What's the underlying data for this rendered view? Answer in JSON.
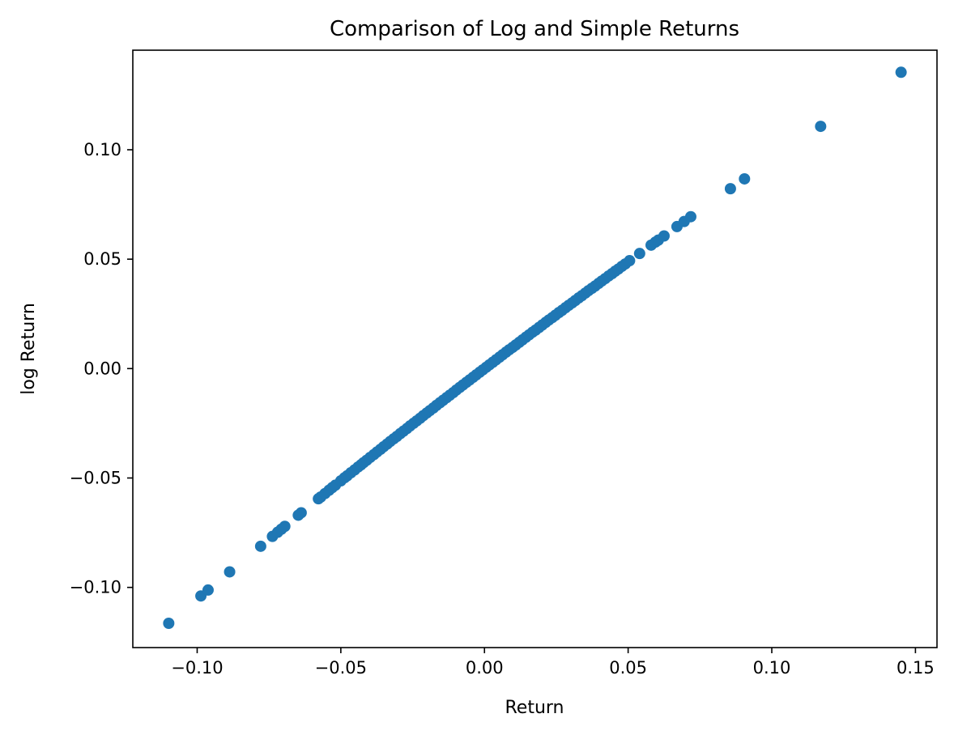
{
  "chart_data": {
    "type": "scatter",
    "title": "Comparison of Log and Simple Returns",
    "xlabel": "Return",
    "ylabel": "log Return",
    "xlim": [
      -0.1224,
      0.1575
    ],
    "ylim": [
      -0.1275,
      0.1455
    ],
    "xticks": [
      {
        "value": -0.1,
        "label": "−0.10"
      },
      {
        "value": -0.05,
        "label": "−0.05"
      },
      {
        "value": 0.0,
        "label": "0.00"
      },
      {
        "value": 0.05,
        "label": "0.05"
      },
      {
        "value": 0.1,
        "label": "0.10"
      },
      {
        "value": 0.15,
        "label": "0.15"
      }
    ],
    "yticks": [
      {
        "value": -0.1,
        "label": "−0.10"
      },
      {
        "value": -0.05,
        "label": "−0.05"
      },
      {
        "value": 0.0,
        "label": "0.00"
      },
      {
        "value": 0.05,
        "label": "0.05"
      },
      {
        "value": 0.1,
        "label": "0.10"
      }
    ],
    "grid": false,
    "marker_color": "#1f77b4",
    "series": [
      {
        "x": [
          -0.1099,
          -0.0987,
          -0.0962,
          -0.0887,
          -0.0779,
          -0.0738,
          -0.072,
          -0.0707,
          -0.0695,
          -0.0648,
          -0.0638,
          -0.0578,
          -0.057,
          -0.0555,
          -0.0541,
          -0.053,
          -0.0519,
          -0.05,
          -0.0487,
          -0.0478,
          -0.0465,
          -0.0452,
          -0.044,
          -0.043,
          -0.0421,
          -0.041,
          -0.0398,
          -0.0385,
          -0.0374,
          -0.0362,
          -0.0351,
          -0.0339,
          -0.0328,
          -0.0316,
          -0.0305,
          -0.0293,
          -0.0282,
          -0.027,
          -0.0259,
          -0.0247,
          -0.0236,
          -0.0224,
          -0.0213,
          -0.0201,
          -0.019,
          -0.0178,
          -0.0167,
          -0.0155,
          -0.0144,
          -0.0132,
          -0.0121,
          -0.0109,
          -0.0098,
          -0.0086,
          -0.0075,
          -0.0063,
          -0.0052,
          -0.004,
          -0.0029,
          -0.0017,
          -0.0006,
          0.0006,
          0.0017,
          0.0029,
          0.004,
          0.0052,
          0.0063,
          0.0075,
          0.0086,
          0.0098,
          0.0109,
          0.0121,
          0.0132,
          0.0144,
          0.0155,
          0.0167,
          0.0178,
          0.019,
          0.0201,
          0.0213,
          0.0224,
          0.0236,
          0.0247,
          0.0259,
          0.027,
          0.0282,
          0.0293,
          0.0305,
          0.0316,
          0.0328,
          0.0339,
          0.0351,
          0.0362,
          0.0374,
          0.0385,
          0.0397,
          0.0408,
          0.042,
          0.0432,
          0.0444,
          0.0455,
          0.0466,
          0.0478,
          0.049,
          0.0505,
          0.054,
          0.058,
          0.0595,
          0.0605,
          0.0625,
          0.067,
          0.0695,
          0.0718,
          0.0856,
          0.0905,
          0.117,
          0.145
        ],
        "y": [
          -0.1164,
          -0.1039,
          -0.1012,
          -0.0929,
          -0.0812,
          -0.0767,
          -0.0748,
          -0.0734,
          -0.0721,
          -0.067,
          -0.0659,
          -0.0595,
          -0.0587,
          -0.0571,
          -0.0556,
          -0.0544,
          -0.0533,
          -0.0513,
          -0.0499,
          -0.049,
          -0.0476,
          -0.0463,
          -0.045,
          -0.044,
          -0.043,
          -0.0419,
          -0.0406,
          -0.0393,
          -0.0381,
          -0.0369,
          -0.0357,
          -0.0345,
          -0.0333,
          -0.0321,
          -0.031,
          -0.0297,
          -0.0286,
          -0.0274,
          -0.0262,
          -0.025,
          -0.0239,
          -0.0227,
          -0.0215,
          -0.0203,
          -0.0192,
          -0.018,
          -0.0168,
          -0.0156,
          -0.0145,
          -0.0133,
          -0.0122,
          -0.011,
          -0.0098,
          -0.0086,
          -0.0075,
          -0.0063,
          -0.0052,
          -0.004,
          -0.0029,
          -0.0017,
          -0.0006,
          0.0006,
          0.0017,
          0.0029,
          0.004,
          0.0052,
          0.0063,
          0.0075,
          0.0086,
          0.0097,
          0.0108,
          0.012,
          0.0131,
          0.0143,
          0.0154,
          0.0166,
          0.0176,
          0.0188,
          0.0199,
          0.0211,
          0.0222,
          0.0233,
          0.0244,
          0.0256,
          0.0266,
          0.0278,
          0.0289,
          0.03,
          0.0311,
          0.0323,
          0.0333,
          0.0345,
          0.0356,
          0.0367,
          0.0377,
          0.0389,
          0.04,
          0.0411,
          0.0423,
          0.0434,
          0.0445,
          0.0455,
          0.0467,
          0.0478,
          0.0493,
          0.0526,
          0.0564,
          0.0578,
          0.0587,
          0.0606,
          0.0649,
          0.0672,
          0.0694,
          0.0822,
          0.0867,
          0.1107,
          0.1354
        ]
      }
    ]
  }
}
